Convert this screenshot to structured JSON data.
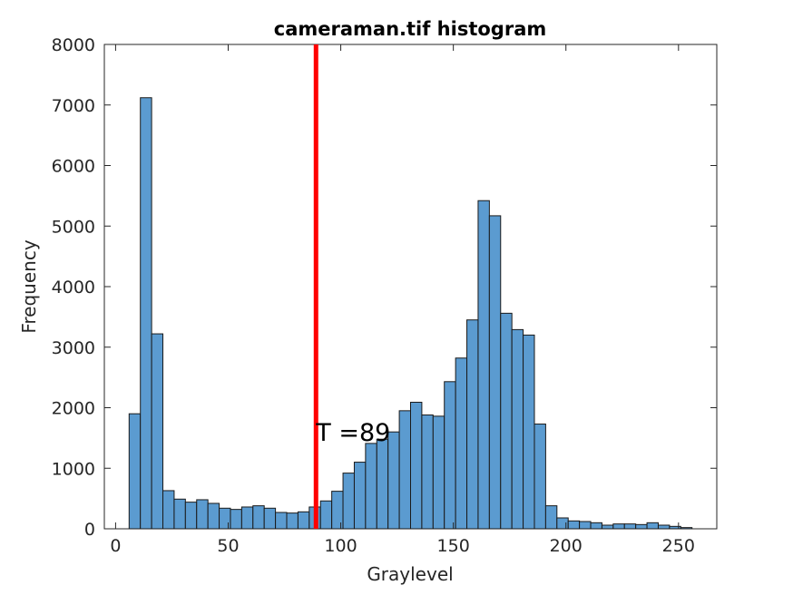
{
  "chart_data": {
    "type": "bar",
    "title": "cameraman.tif histogram",
    "xlabel": "Graylevel",
    "ylabel": "Frequency",
    "xlim": [
      -5,
      267
    ],
    "ylim": [
      0,
      8000
    ],
    "xticks": [
      0,
      50,
      100,
      150,
      200,
      250
    ],
    "yticks": [
      0,
      1000,
      2000,
      3000,
      4000,
      5000,
      6000,
      7000,
      8000
    ],
    "bin_width": 5,
    "bin_start": 6,
    "values": [
      1900,
      7120,
      3220,
      630,
      490,
      440,
      480,
      420,
      340,
      320,
      360,
      380,
      340,
      270,
      260,
      280,
      360,
      460,
      620,
      920,
      1100,
      1410,
      1480,
      1600,
      1950,
      2090,
      1880,
      1860,
      2430,
      2820,
      3450,
      5420,
      5170,
      3560,
      3290,
      3200,
      1730,
      380,
      180,
      130,
      120,
      100,
      60,
      80,
      80,
      70,
      100,
      60,
      40,
      20
    ],
    "threshold": {
      "value": 89,
      "label": "T =89",
      "color": "#ff0000"
    },
    "bar_color": "#5b9bd0",
    "grid": false,
    "legend": "none"
  }
}
